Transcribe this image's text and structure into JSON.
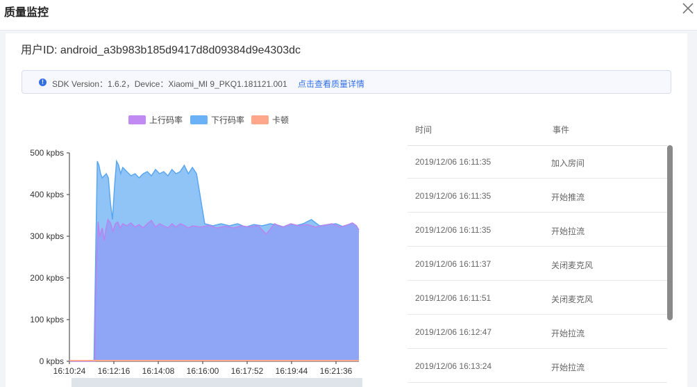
{
  "modal": {
    "title": "质量监控"
  },
  "user": {
    "id_text": "用户ID: android_a3b983b185d9417d8d09384d9e4303dc"
  },
  "info": {
    "text": "SDK Version：1.6.2，Device：Xiaomi_MI 9_PKQ1.181121.001",
    "link": "点击查看质量详情"
  },
  "colors": {
    "upload": "#c08af2",
    "download": "#6bb1f5",
    "stutter": "#ffa78a",
    "link": "#3370e6"
  },
  "table": {
    "headers": {
      "time": "时间",
      "event": "事件"
    },
    "rows": [
      {
        "time": "2019/12/06 16:11:35",
        "event": "加入房间"
      },
      {
        "time": "2019/12/06 16:11:35",
        "event": "开始推流"
      },
      {
        "time": "2019/12/06 16:11:35",
        "event": "开始拉流"
      },
      {
        "time": "2019/12/06 16:11:37",
        "event": "关闭麦克风"
      },
      {
        "time": "2019/12/06 16:11:51",
        "event": "关闭麦克风"
      },
      {
        "time": "2019/12/06 16:12:47",
        "event": "开始拉流"
      },
      {
        "time": "2019/12/06 16:13:24",
        "event": "开始拉流"
      }
    ]
  },
  "chart_data": {
    "type": "area",
    "title": "",
    "xlabel": "",
    "ylabel": "",
    "legend_position": "top",
    "grid": false,
    "x_ticks": [
      "16:10:24",
      "16:12:16",
      "16:14:08",
      "16:16:00",
      "16:17:52",
      "16:19:44",
      "16:21:36"
    ],
    "y_ticks": [
      "0 kpbs",
      "100 kpbs",
      "200 kpbs",
      "300 kpbs",
      "400 kpbs",
      "500 kpbs"
    ],
    "ylim": [
      0,
      500
    ],
    "x_range_seconds": [
      0,
      706
    ],
    "series": [
      {
        "name": "上行码率",
        "x": [
          0,
          62,
          65,
          70,
          74,
          80,
          85,
          89,
          94,
          100,
          106,
          112,
          118,
          124,
          130,
          140,
          150,
          160,
          170,
          180,
          190,
          200,
          210,
          220,
          230,
          240,
          250,
          260,
          270,
          280,
          290,
          300,
          320,
          340,
          360,
          380,
          400,
          420,
          440,
          460,
          480,
          500,
          520,
          540,
          560,
          580,
          600,
          620,
          640,
          660,
          680,
          690,
          700,
          706
        ],
        "values": [
          0,
          0,
          200,
          335,
          300,
          320,
          290,
          318,
          340,
          332,
          312,
          330,
          334,
          320,
          330,
          325,
          332,
          322,
          328,
          320,
          330,
          338,
          322,
          330,
          325,
          320,
          330,
          322,
          330,
          326,
          320,
          325,
          322,
          326,
          320,
          324,
          320,
          325,
          322,
          326,
          305,
          330,
          322,
          330,
          325,
          328,
          322,
          326,
          330,
          322,
          328,
          332,
          325,
          315
        ]
      },
      {
        "name": "下行码率",
        "x": [
          0,
          60,
          64,
          68,
          72,
          76,
          80,
          85,
          90,
          95,
          100,
          105,
          110,
          115,
          120,
          125,
          130,
          140,
          150,
          160,
          170,
          180,
          190,
          200,
          210,
          220,
          230,
          240,
          250,
          260,
          270,
          280,
          290,
          300,
          310,
          330,
          350,
          370,
          390,
          410,
          430,
          450,
          470,
          490,
          510,
          530,
          550,
          570,
          590,
          610,
          630,
          650,
          670,
          690,
          700,
          706
        ],
        "values": [
          0,
          0,
          250,
          480,
          470,
          450,
          440,
          445,
          450,
          440,
          380,
          340,
          420,
          480,
          470,
          450,
          465,
          455,
          445,
          450,
          440,
          450,
          455,
          445,
          460,
          450,
          455,
          445,
          460,
          450,
          455,
          470,
          450,
          465,
          450,
          330,
          325,
          330,
          325,
          330,
          322,
          328,
          325,
          330,
          326,
          320,
          325,
          330,
          340,
          325,
          328,
          330,
          322,
          328,
          318,
          310
        ]
      },
      {
        "name": "卡顿",
        "x": [
          0,
          706
        ],
        "values": [
          0,
          0
        ]
      }
    ]
  }
}
